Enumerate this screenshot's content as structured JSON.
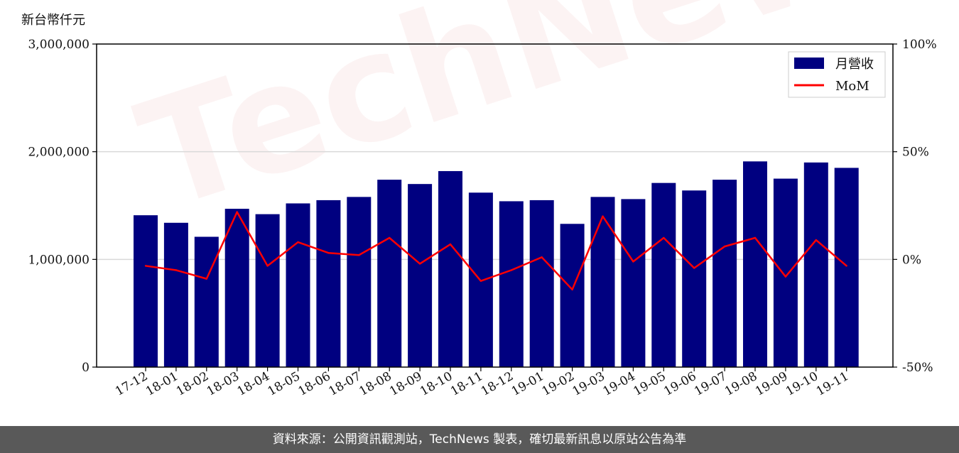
{
  "unit_label": "新台幣仟元",
  "footer_text": "資料來源：公開資訊觀測站，TechNews 製表，確切最新訊息以原站公告為準",
  "watermark_text": "TechNews",
  "colors": {
    "bar": "#000080",
    "line": "#ff0000",
    "grid": "#d9d9d9",
    "footer_bg": "#595959"
  },
  "chart_data": {
    "type": "bar",
    "categories": [
      "17-12",
      "18-01",
      "18-02",
      "18-03",
      "18-04",
      "18-05",
      "18-06",
      "18-07",
      "18-08",
      "18-09",
      "18-10",
      "18-11",
      "18-12",
      "19-01",
      "19-02",
      "19-03",
      "19-04",
      "19-05",
      "19-06",
      "19-07",
      "19-08",
      "19-09",
      "19-10",
      "19-11"
    ],
    "series": [
      {
        "name": "月營收",
        "type": "bar",
        "axis": "left",
        "values": [
          1410000,
          1340000,
          1210000,
          1470000,
          1420000,
          1520000,
          1550000,
          1580000,
          1740000,
          1700000,
          1820000,
          1620000,
          1540000,
          1550000,
          1330000,
          1580000,
          1560000,
          1710000,
          1640000,
          1740000,
          1910000,
          1750000,
          1900000,
          1850000
        ]
      },
      {
        "name": "MoM",
        "type": "line",
        "axis": "right",
        "values": [
          -3,
          -5,
          -9,
          22,
          -3,
          8,
          3,
          2,
          10,
          -2,
          7,
          -10,
          -5,
          1,
          -14,
          20,
          -1,
          10,
          -4,
          6,
          10,
          -8,
          9,
          -3
        ]
      }
    ],
    "y_left": {
      "ticks": [
        0,
        1000000,
        2000000,
        3000000
      ],
      "tick_labels": [
        "0",
        "1,000,000",
        "2,000,000",
        "3,000,000"
      ],
      "lim": [
        0,
        3000000
      ]
    },
    "y_right": {
      "ticks": [
        -50,
        0,
        50,
        100
      ],
      "tick_labels": [
        "-50%",
        "0%",
        "50%",
        "100%"
      ],
      "lim": [
        -50,
        100
      ]
    },
    "grid": "horizontal",
    "legend_position": "top-right"
  }
}
